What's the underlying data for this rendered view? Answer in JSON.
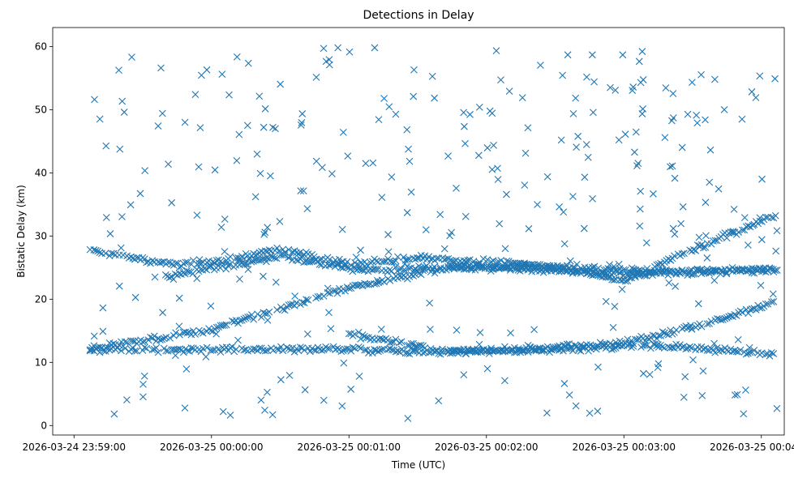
{
  "chart_data": {
    "type": "scatter",
    "title": "Detections in Delay",
    "xlabel": "Time (UTC)",
    "ylabel": "Bistatic Delay (km)",
    "x_ticks": [
      {
        "t": 0,
        "label": "2026-03-24 23:59:00"
      },
      {
        "t": 60,
        "label": "2026-03-25 00:00:00"
      },
      {
        "t": 120,
        "label": "2026-03-25 00:01:00"
      },
      {
        "t": 180,
        "label": "2026-03-25 00:02:00"
      },
      {
        "t": 240,
        "label": "2026-03-25 00:03:00"
      },
      {
        "t": 300,
        "label": "2026-03-25 00:04:00"
      }
    ],
    "y_ticks": [
      0,
      10,
      20,
      30,
      40,
      50,
      60
    ],
    "xlim_seconds_after_2026-03-24_23:59:00": [
      -9.3,
      310
    ],
    "ylim": [
      -1.5,
      63
    ],
    "grid": false,
    "legend": "none",
    "marker": "x",
    "color": "#1f77b4",
    "tracks": [
      {
        "start_s": 7,
        "end_s": 307,
        "delay_points_km": [
          [
            7,
            12.1
          ],
          [
            60,
            15.2
          ],
          [
            120,
            21.8
          ],
          [
            160,
            24.8
          ],
          [
            180,
            25.1
          ],
          [
            220,
            25.0
          ],
          [
            250,
            24.3
          ],
          [
            307,
            24.6
          ]
        ]
      },
      {
        "start_s": 7,
        "end_s": 307,
        "delay_points_km": [
          [
            7,
            12.0
          ],
          [
            120,
            12.0
          ],
          [
            160,
            11.6
          ],
          [
            200,
            12.0
          ],
          [
            240,
            13.0
          ],
          [
            270,
            15.5
          ],
          [
            307,
            19.6
          ]
        ]
      },
      {
        "start_s": 7,
        "end_s": 307,
        "delay_points_km": [
          [
            7,
            27.8
          ],
          [
            40,
            25.6
          ],
          [
            60,
            25.8
          ],
          [
            90,
            28.0
          ],
          [
            120,
            25.5
          ],
          [
            150,
            26.5
          ],
          [
            200,
            25.5
          ],
          [
            240,
            23.0
          ],
          [
            307,
            33.5
          ]
        ]
      },
      {
        "start_s": 40,
        "end_s": 307,
        "delay_points_km": [
          [
            40,
            23.5
          ],
          [
            90,
            26.8
          ],
          [
            130,
            24.5
          ],
          [
            170,
            25.2
          ],
          [
            240,
            24.0
          ],
          [
            307,
            24.8
          ]
        ]
      },
      {
        "start_s": 120,
        "end_s": 307,
        "delay_points_km": [
          [
            120,
            14.5
          ],
          [
            160,
            11.8
          ],
          [
            220,
            12.2
          ],
          [
            250,
            12.8
          ],
          [
            307,
            11.2
          ]
        ]
      }
    ],
    "clutter_delay_range_km": [
      1,
      60
    ]
  }
}
